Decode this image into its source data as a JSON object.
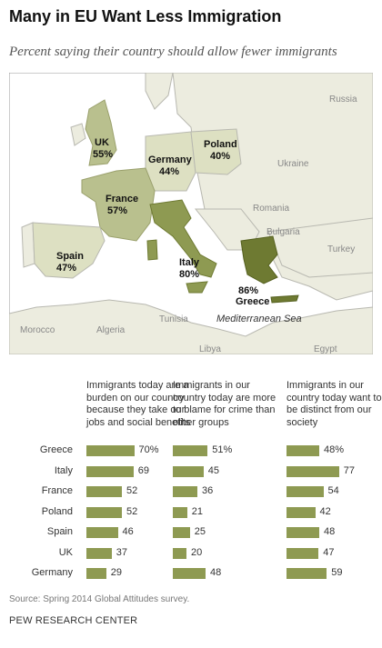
{
  "title": "Many in EU Want Less Immigration",
  "subtitle": "Percent saying their country should allow fewer immigrants",
  "map": {
    "highlighted": [
      {
        "name": "UK",
        "value": "55%"
      },
      {
        "name": "Germany",
        "value": "44%"
      },
      {
        "name": "Poland",
        "value": "40%"
      },
      {
        "name": "France",
        "value": "57%"
      },
      {
        "name": "Spain",
        "value": "47%"
      },
      {
        "name": "Italy",
        "value": "80%"
      },
      {
        "name": "Greece",
        "value": "86%"
      }
    ],
    "other_labels": [
      "Russia",
      "Ukraine",
      "Romania",
      "Bulgaria",
      "Turkey",
      "Morocco",
      "Algeria",
      "Tunisia",
      "Libya",
      "Egypt",
      "Mediterranean Sea"
    ],
    "colors": {
      "sea": "#ffffff",
      "land": "#ececdf",
      "border": "#b8b8b0",
      "light": "#dde0c2",
      "medium": "#b9c08e",
      "dark": "#8e9a52",
      "darkest": "#6e7a32"
    }
  },
  "chart_data": {
    "type": "bar",
    "categories": [
      "Greece",
      "Italy",
      "France",
      "Poland",
      "Spain",
      "UK",
      "Germany"
    ],
    "series": [
      {
        "name": "Immigrants today are a burden on our country because they take our jobs and social benefits",
        "values": [
          70,
          69,
          52,
          52,
          46,
          37,
          29
        ]
      },
      {
        "name": "Immigrants in our country today are more to blame for crime than other groups",
        "values": [
          51,
          45,
          36,
          21,
          25,
          20,
          48
        ]
      },
      {
        "name": "Immigrants in our country today want to be distinct from our society",
        "values": [
          48,
          77,
          54,
          42,
          48,
          47,
          59
        ]
      }
    ],
    "first_row_labels": [
      "70%",
      "51%",
      "48%"
    ],
    "bar_color": "#8e9a52",
    "ylim": [
      0,
      100
    ]
  },
  "footer": {
    "source": "Source: Spring 2014 Global Attitudes survey.",
    "brand": "PEW RESEARCH CENTER"
  }
}
